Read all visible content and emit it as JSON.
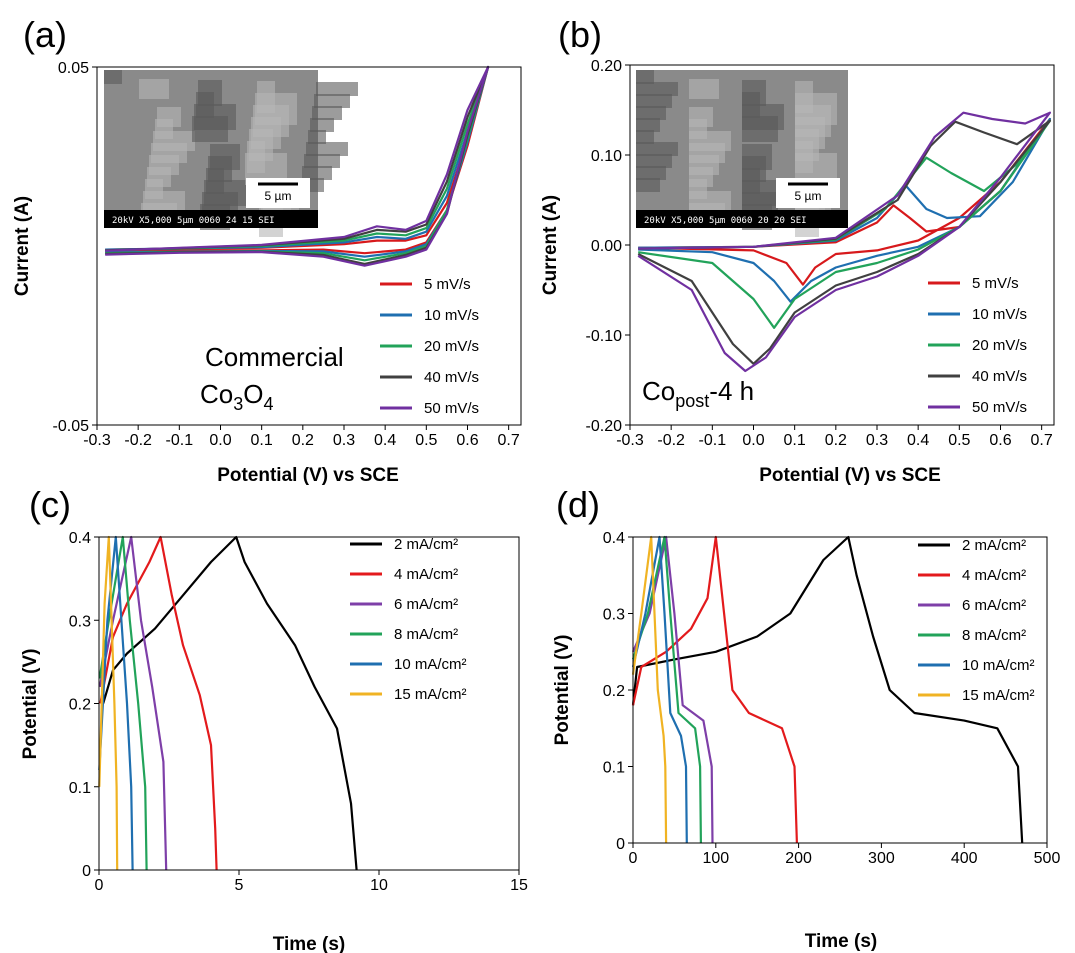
{
  "chart_data": [
    {
      "type": "line",
      "panel_label": "(a)",
      "x_label": "Potential (V) vs SCE",
      "y_label": "Current (A)",
      "xlim": [
        -0.3,
        0.73
      ],
      "ylim": [
        -0.05,
        0.05
      ],
      "xticks": [
        -0.3,
        -0.2,
        -0.1,
        {
          "value": 0,
          "label": "0.0"
        },
        0.1,
        0.2,
        0.3,
        0.4,
        0.5,
        0.6,
        0.7
      ],
      "yticks": [
        -0.05,
        0.05
      ],
      "grid": false,
      "annotation": [
        [
          "Commercial"
        ],
        [
          "Co",
          "3",
          "O",
          "4"
        ]
      ],
      "inset": {
        "scale_bar": "5 µm",
        "footer": "20kV X5,000 5µm 0060 24 15 SEI"
      },
      "series": [
        {
          "name": "5 mV/s",
          "color": "#d7191c",
          "x": [
            -0.28,
            -0.1,
            0.1,
            0.3,
            0.38,
            0.45,
            0.5,
            0.55,
            0.6,
            0.65,
            0.6,
            0.55,
            0.5,
            0.45,
            0.35,
            0.25,
            0.1,
            -0.1,
            -0.28
          ],
          "values": [
            -0.001,
            -0.0008,
            -0.0005,
            0.0005,
            0.0015,
            0.0015,
            0.003,
            0.012,
            0.03,
            0.05,
            0.028,
            0.01,
            0.001,
            -0.001,
            -0.002,
            -0.001,
            -0.0012,
            -0.0014,
            -0.0016
          ]
        },
        {
          "name": "10 mV/s",
          "color": "#1f6fb0",
          "x": [
            -0.28,
            -0.1,
            0.1,
            0.3,
            0.38,
            0.45,
            0.5,
            0.55,
            0.6,
            0.65,
            0.6,
            0.55,
            0.5,
            0.45,
            0.35,
            0.25,
            0.1,
            -0.1,
            -0.28
          ],
          "values": [
            -0.001,
            -0.0007,
            -0.0003,
            0.001,
            0.0025,
            0.002,
            0.004,
            0.014,
            0.032,
            0.05,
            0.029,
            0.01,
            0.0005,
            -0.0015,
            -0.003,
            -0.0015,
            -0.0014,
            -0.0016,
            -0.0018
          ]
        },
        {
          "name": "20 mV/s",
          "color": "#22a35a",
          "x": [
            -0.28,
            -0.1,
            0.1,
            0.3,
            0.38,
            0.45,
            0.5,
            0.55,
            0.6,
            0.65,
            0.6,
            0.55,
            0.5,
            0.45,
            0.35,
            0.25,
            0.1,
            -0.1,
            -0.28
          ],
          "values": [
            -0.0012,
            -0.0007,
            0,
            0.0015,
            0.0035,
            0.003,
            0.005,
            0.016,
            0.034,
            0.05,
            0.03,
            0.01,
            0,
            -0.002,
            -0.004,
            -0.002,
            -0.0015,
            -0.0017,
            -0.002
          ]
        },
        {
          "name": "40 mV/s",
          "color": "#404040",
          "x": [
            -0.28,
            -0.1,
            0.1,
            0.3,
            0.38,
            0.45,
            0.5,
            0.55,
            0.6,
            0.65,
            0.6,
            0.55,
            0.5,
            0.45,
            0.35,
            0.25,
            0.1,
            -0.1,
            -0.28
          ],
          "values": [
            -0.0012,
            -0.0006,
            0.0002,
            0.002,
            0.0045,
            0.004,
            0.006,
            0.018,
            0.036,
            0.05,
            0.031,
            0.009,
            -0.0005,
            -0.0025,
            -0.005,
            -0.0025,
            -0.0016,
            -0.0018,
            -0.0022
          ]
        },
        {
          "name": "50 mV/s",
          "color": "#7030a0",
          "x": [
            -0.28,
            -0.1,
            0.1,
            0.3,
            0.38,
            0.45,
            0.5,
            0.55,
            0.6,
            0.65,
            0.6,
            0.55,
            0.5,
            0.45,
            0.35,
            0.25,
            0.1,
            -0.1,
            -0.28
          ],
          "values": [
            -0.0013,
            -0.0005,
            0.0003,
            0.0025,
            0.0055,
            0.0045,
            0.007,
            0.02,
            0.038,
            0.05,
            0.032,
            0.009,
            -0.001,
            -0.003,
            -0.0055,
            -0.003,
            -0.0017,
            -0.0019,
            -0.0024
          ]
        }
      ]
    },
    {
      "type": "line",
      "panel_label": "(b)",
      "x_label": "Potential (V) vs SCE",
      "y_label": "Current (A)",
      "xlim": [
        -0.3,
        0.73
      ],
      "ylim": [
        -0.2,
        0.2
      ],
      "xticks": [
        -0.3,
        -0.2,
        -0.1,
        {
          "value": 0,
          "label": "0.0"
        },
        0.1,
        0.2,
        0.3,
        0.4,
        0.5,
        0.6,
        0.7
      ],
      "yticks": [
        {
          "value": -0.2,
          "label": "-0.20"
        },
        {
          "value": -0.1,
          "label": "-0.10"
        },
        {
          "value": 0,
          "label": "0.00"
        },
        {
          "value": 0.1,
          "label": "0.10"
        },
        {
          "value": 0.2,
          "label": "0.20"
        }
      ],
      "grid": false,
      "annotation": [
        [
          "Co",
          "post",
          "-4 h"
        ]
      ],
      "inset": {
        "scale_bar": "5 µm",
        "footer": "20kV X5,000 5µm 0060 20 20 SEI"
      },
      "series": [
        {
          "name": "5 mV/s",
          "color": "#d7191c",
          "x": [
            -0.28,
            0,
            0.2,
            0.3,
            0.34,
            0.38,
            0.42,
            0.5,
            0.6,
            0.72,
            0.6,
            0.5,
            0.4,
            0.3,
            0.2,
            0.15,
            0.12,
            0.08,
            0,
            -0.28
          ],
          "values": [
            -0.003,
            -0.002,
            0.003,
            0.025,
            0.044,
            0.03,
            0.015,
            0.02,
            0.06,
            0.14,
            0.07,
            0.03,
            0.005,
            -0.006,
            -0.01,
            -0.025,
            -0.044,
            -0.02,
            -0.006,
            -0.003
          ]
        },
        {
          "name": "10 mV/s",
          "color": "#1f6fb0",
          "x": [
            -0.28,
            0,
            0.2,
            0.3,
            0.37,
            0.42,
            0.47,
            0.55,
            0.63,
            0.72,
            0.6,
            0.5,
            0.4,
            0.3,
            0.2,
            0.14,
            0.09,
            0.05,
            0,
            -0.1,
            -0.28
          ],
          "values": [
            -0.003,
            -0.002,
            0.005,
            0.03,
            0.066,
            0.04,
            0.03,
            0.032,
            0.07,
            0.14,
            0.06,
            0.02,
            -0.002,
            -0.012,
            -0.025,
            -0.04,
            -0.063,
            -0.04,
            -0.02,
            -0.008,
            -0.005
          ]
        },
        {
          "name": "20 mV/s",
          "color": "#22a35a",
          "x": [
            -0.28,
            0,
            0.2,
            0.32,
            0.42,
            0.48,
            0.56,
            0.64,
            0.72,
            0.6,
            0.5,
            0.4,
            0.3,
            0.2,
            0.1,
            0.05,
            0,
            -0.1,
            -0.28
          ],
          "values": [
            -0.004,
            -0.002,
            0.006,
            0.04,
            0.097,
            0.08,
            0.06,
            0.09,
            0.138,
            0.06,
            0.02,
            -0.005,
            -0.02,
            -0.03,
            -0.06,
            -0.092,
            -0.06,
            -0.02,
            -0.008
          ]
        },
        {
          "name": "40 mV/s",
          "color": "#404040",
          "x": [
            -0.28,
            0,
            0.2,
            0.35,
            0.43,
            0.49,
            0.56,
            0.64,
            0.72,
            0.6,
            0.5,
            0.4,
            0.3,
            0.2,
            0.1,
            0.04,
            0,
            -0.05,
            -0.15,
            -0.28
          ],
          "values": [
            -0.004,
            -0.002,
            0.007,
            0.05,
            0.11,
            0.137,
            0.125,
            0.112,
            0.138,
            0.07,
            0.02,
            -0.01,
            -0.03,
            -0.045,
            -0.075,
            -0.115,
            -0.132,
            -0.11,
            -0.04,
            -0.01
          ]
        },
        {
          "name": "50 mV/s",
          "color": "#7030a0",
          "x": [
            -0.28,
            0,
            0.2,
            0.35,
            0.44,
            0.51,
            0.58,
            0.66,
            0.72,
            0.6,
            0.5,
            0.4,
            0.3,
            0.2,
            0.1,
            0.03,
            -0.02,
            -0.07,
            -0.15,
            -0.28
          ],
          "values": [
            -0.004,
            -0.002,
            0.008,
            0.055,
            0.12,
            0.147,
            0.14,
            0.135,
            0.147,
            0.075,
            0.02,
            -0.012,
            -0.035,
            -0.05,
            -0.08,
            -0.125,
            -0.14,
            -0.12,
            -0.05,
            -0.012
          ]
        }
      ]
    },
    {
      "type": "line",
      "panel_label": "(c)",
      "x_label": "Time (s)",
      "y_label": "Potential (V)",
      "xlim": [
        0,
        15
      ],
      "ylim": [
        0,
        0.4
      ],
      "xticks": [
        0,
        5,
        10,
        15
      ],
      "yticks": [
        0,
        0.1,
        0.2,
        0.3,
        0.4
      ],
      "grid": false,
      "series": [
        {
          "name": "2 mA/cm²",
          "color": "#000000",
          "x": [
            0.15,
            0.5,
            1,
            2,
            3,
            4,
            4.9,
            5.2,
            6,
            7,
            7.7,
            8.5,
            9,
            9.2
          ],
          "values": [
            0.2,
            0.24,
            0.26,
            0.29,
            0.33,
            0.37,
            0.4,
            0.37,
            0.32,
            0.27,
            0.22,
            0.17,
            0.08,
            0
          ]
        },
        {
          "name": "4 mA/cm²",
          "color": "#e31a1c",
          "x": [
            0.05,
            0.5,
            1,
            1.8,
            2.2,
            2.6,
            3,
            3.6,
            4,
            4.15,
            4.2
          ],
          "values": [
            0.2,
            0.28,
            0.32,
            0.37,
            0.4,
            0.33,
            0.27,
            0.21,
            0.15,
            0.05,
            0
          ]
        },
        {
          "name": "6 mA/cm²",
          "color": "#7e3fa8",
          "x": [
            0.03,
            0.5,
            1.15,
            1.5,
            1.9,
            2.3,
            2.4
          ],
          "values": [
            0.22,
            0.3,
            0.4,
            0.3,
            0.22,
            0.13,
            0
          ]
        },
        {
          "name": "8 mA/cm²",
          "color": "#22a35a",
          "x": [
            0.02,
            0.4,
            0.85,
            1.1,
            1.4,
            1.65,
            1.7
          ],
          "values": [
            0.23,
            0.31,
            0.4,
            0.3,
            0.2,
            0.1,
            0
          ]
        },
        {
          "name": "10 mA/cm²",
          "color": "#1f6fb0",
          "x": [
            0.01,
            0.3,
            0.6,
            0.8,
            1,
            1.15,
            1.2
          ],
          "values": [
            0.12,
            0.3,
            0.4,
            0.3,
            0.2,
            0.1,
            0
          ]
        },
        {
          "name": "15 mA/cm²",
          "color": "#f0b323",
          "x": [
            0.01,
            0.2,
            0.35,
            0.45,
            0.55,
            0.63,
            0.65
          ],
          "values": [
            0.1,
            0.32,
            0.4,
            0.3,
            0.2,
            0.1,
            0
          ]
        }
      ]
    },
    {
      "type": "line",
      "panel_label": "(d)",
      "x_label": "Time (s)",
      "y_label": "Potential (V)",
      "xlim": [
        0,
        500
      ],
      "ylim": [
        0,
        0.4
      ],
      "xticks": [
        0,
        100,
        200,
        300,
        400,
        500
      ],
      "yticks": [
        0,
        0.1,
        0.2,
        0.3,
        0.4
      ],
      "grid": false,
      "series": [
        {
          "name": "2 mA/cm²",
          "color": "#000000",
          "x": [
            0,
            5,
            50,
            100,
            150,
            190,
            230,
            260,
            270,
            290,
            310,
            340,
            400,
            440,
            465,
            470
          ],
          "values": [
            0.18,
            0.23,
            0.24,
            0.25,
            0.27,
            0.3,
            0.37,
            0.4,
            0.35,
            0.27,
            0.2,
            0.17,
            0.16,
            0.15,
            0.1,
            0
          ]
        },
        {
          "name": "4 mA/cm²",
          "color": "#e31a1c",
          "x": [
            0,
            10,
            40,
            70,
            90,
            100,
            110,
            120,
            140,
            180,
            195,
            198
          ],
          "values": [
            0.18,
            0.23,
            0.25,
            0.28,
            0.32,
            0.4,
            0.3,
            0.2,
            0.17,
            0.15,
            0.1,
            0
          ]
        },
        {
          "name": "6 mA/cm²",
          "color": "#7e3fa8",
          "x": [
            0,
            20,
            40,
            50,
            60,
            85,
            95,
            96
          ],
          "values": [
            0.25,
            0.3,
            0.4,
            0.3,
            0.18,
            0.16,
            0.1,
            0
          ]
        },
        {
          "name": "8 mA/cm²",
          "color": "#22a35a",
          "x": [
            0,
            18,
            38,
            45,
            55,
            75,
            81,
            82
          ],
          "values": [
            0.24,
            0.3,
            0.4,
            0.3,
            0.17,
            0.15,
            0.1,
            0
          ]
        },
        {
          "name": "10 mA/cm²",
          "color": "#1f6fb0",
          "x": [
            0,
            15,
            32,
            38,
            45,
            58,
            64,
            65
          ],
          "values": [
            0.23,
            0.3,
            0.4,
            0.3,
            0.17,
            0.14,
            0.1,
            0
          ]
        },
        {
          "name": "15 mA/cm²",
          "color": "#f0b323",
          "x": [
            0,
            10,
            22,
            26,
            30,
            37,
            39,
            40
          ],
          "values": [
            0.22,
            0.3,
            0.4,
            0.3,
            0.2,
            0.14,
            0.1,
            0
          ]
        }
      ]
    }
  ]
}
